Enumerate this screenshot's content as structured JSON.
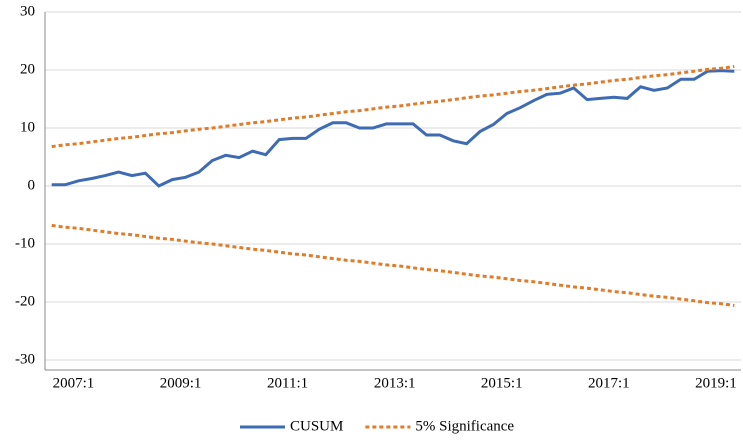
{
  "chart_data": {
    "type": "line",
    "categories": [
      null,
      null,
      "2007:1",
      null,
      null,
      null,
      null,
      null,
      null,
      null,
      "2009:1",
      null,
      null,
      null,
      null,
      null,
      null,
      null,
      "2011:1",
      null,
      null,
      null,
      null,
      null,
      null,
      null,
      "2013:1",
      null,
      null,
      null,
      null,
      null,
      null,
      null,
      "2015:1",
      null,
      null,
      null,
      null,
      null,
      null,
      null,
      "2017:1",
      null,
      null,
      null,
      null,
      null,
      null,
      null,
      "2019:1",
      null
    ],
    "series": [
      {
        "name": "CUSUM",
        "color": "#3e6bb4",
        "dash": false,
        "values": [
          0.2,
          0.2,
          0.9,
          1.3,
          1.8,
          2.4,
          1.8,
          2.2,
          0.0,
          1.1,
          1.5,
          2.4,
          4.4,
          5.3,
          4.9,
          6.0,
          5.4,
          8.0,
          8.2,
          8.2,
          9.8,
          10.9,
          10.9,
          10.0,
          10.0,
          10.7,
          10.7,
          10.7,
          8.8,
          8.8,
          7.8,
          7.3,
          9.4,
          10.6,
          12.5,
          13.5,
          14.7,
          15.8,
          16.0,
          16.9,
          14.9,
          15.1,
          15.3,
          15.1,
          17.1,
          16.5,
          16.9,
          18.4,
          18.4,
          19.8,
          19.9,
          19.8
        ]
      },
      {
        "name": "5% Significance",
        "color": "#e07b2a",
        "dash": true,
        "values": [
          6.8,
          7.1,
          7.3,
          7.6,
          7.9,
          8.2,
          8.4,
          8.7,
          9.0,
          9.2,
          9.5,
          9.8,
          10.0,
          10.3,
          10.6,
          10.9,
          11.1,
          11.4,
          11.7,
          11.9,
          12.2,
          12.5,
          12.8,
          13.0,
          13.3,
          13.6,
          13.8,
          14.1,
          14.4,
          14.6,
          14.9,
          15.2,
          15.5,
          15.7,
          16.0,
          16.3,
          16.5,
          16.8,
          17.1,
          17.4,
          17.6,
          17.9,
          18.2,
          18.4,
          18.7,
          19.0,
          19.2,
          19.5,
          19.8,
          20.1,
          20.3,
          20.6
        ],
        "lower": [
          -6.8,
          -7.1,
          -7.3,
          -7.6,
          -7.9,
          -8.2,
          -8.4,
          -8.7,
          -9.0,
          -9.2,
          -9.5,
          -9.8,
          -10.0,
          -10.3,
          -10.6,
          -10.9,
          -11.1,
          -11.4,
          -11.7,
          -11.9,
          -12.2,
          -12.5,
          -12.8,
          -13.0,
          -13.3,
          -13.6,
          -13.8,
          -14.1,
          -14.4,
          -14.6,
          -14.9,
          -15.2,
          -15.5,
          -15.7,
          -16.0,
          -16.3,
          -16.5,
          -16.8,
          -17.1,
          -17.4,
          -17.6,
          -17.9,
          -18.2,
          -18.4,
          -18.7,
          -19.0,
          -19.2,
          -19.5,
          -19.8,
          -20.1,
          -20.3,
          -20.6
        ]
      }
    ],
    "ylim": [
      -30,
      30
    ],
    "yticks": [
      -30,
      -20,
      -10,
      0,
      10,
      20,
      30
    ],
    "grid": true,
    "legend": "bottom"
  }
}
